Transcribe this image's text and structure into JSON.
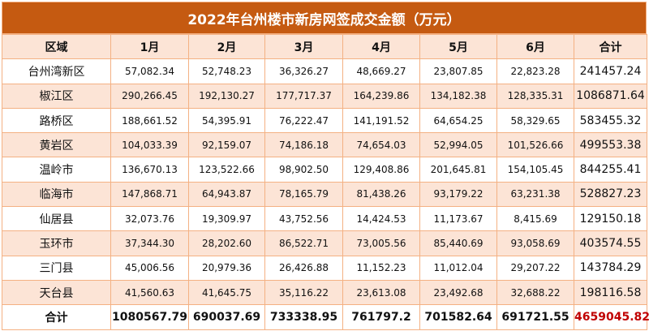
{
  "title": "2022年台州楼市新房网签成交金额（万元）",
  "headers": [
    "区域",
    "1月",
    "2月",
    "3月",
    "4月",
    "5月",
    "6月",
    "合计"
  ],
  "rows": [
    [
      "台州湾新区",
      "57,082.34",
      "52,748.23",
      "36,326.27",
      "48,669.27",
      "23,807.85",
      "22,823.28",
      "241457.24"
    ],
    [
      "椒江区",
      "290,266.45",
      "192,130.27",
      "177,717.37",
      "164,239.86",
      "134,182.38",
      "128,335.31",
      "1086871.64"
    ],
    [
      "路桥区",
      "188,661.52",
      "54,395.91",
      "76,222.47",
      "141,191.52",
      "64,654.25",
      "58,329.65",
      "583455.32"
    ],
    [
      "黄岩区",
      "104,033.39",
      "92,159.07",
      "74,186.18",
      "74,654.03",
      "52,994.05",
      "101,526.66",
      "499553.38"
    ],
    [
      "温岭市",
      "136,670.13",
      "123,522.66",
      "98,902.50",
      "129,408.86",
      "201,645.81",
      "154,105.45",
      "844255.41"
    ],
    [
      "临海市",
      "147,868.71",
      "64,943.87",
      "78,165.79",
      "81,438.26",
      "93,179.22",
      "63,231.38",
      "528827.23"
    ],
    [
      "仙居县",
      "32,073.76",
      "19,309.97",
      "43,752.56",
      "14,424.53",
      "11,173.67",
      "8,415.69",
      "129150.18"
    ],
    [
      "玉环市",
      "37,344.30",
      "28,202.60",
      "86,522.71",
      "73,005.56",
      "85,440.69",
      "93,058.69",
      "403574.55"
    ],
    [
      "三门县",
      "45,006.56",
      "20,979.36",
      "26,426.88",
      "11,152.23",
      "11,012.04",
      "29,207.22",
      "143784.29"
    ],
    [
      "天台县",
      "41,560.63",
      "41,645.75",
      "35,116.22",
      "23,613.08",
      "23,492.68",
      "32,688.22",
      "198116.58"
    ]
  ],
  "total_row": [
    "合计",
    "1080567.79",
    "690037.69",
    "733338.95",
    "761797.2",
    "701582.64",
    "691721.55",
    "4659045.82"
  ],
  "colors": {
    "title_bg": "#C55A11",
    "alt_row": "#FCE4D6",
    "border": "#F4B183",
    "grand_total": "#C00000"
  }
}
